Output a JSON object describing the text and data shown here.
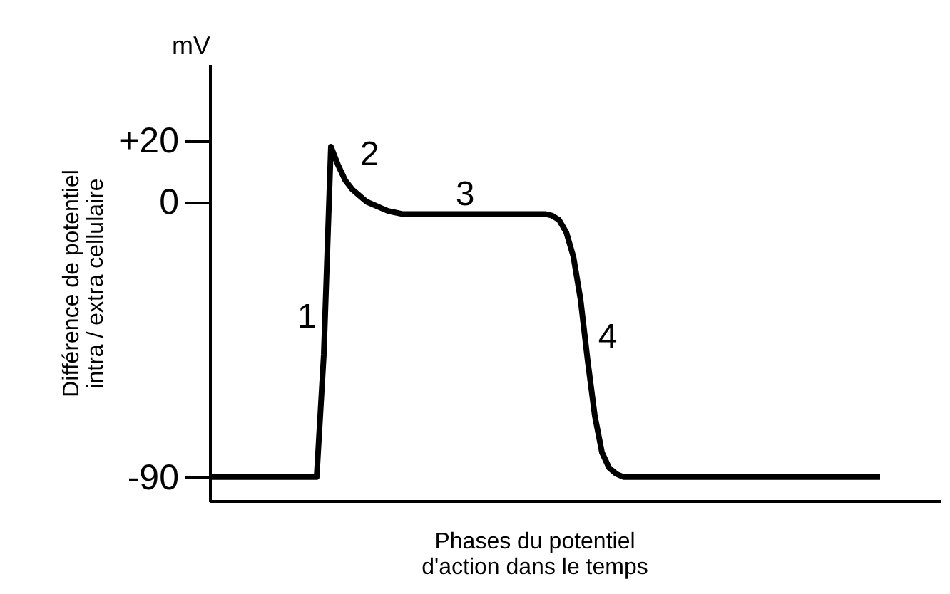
{
  "chart_data": {
    "type": "line",
    "xlabel": "Phases du potentiel\nd'action dans le temps",
    "ylabel": "Différence de potentiel\nintra / extra cellulaire",
    "annotations": [
      "mV",
      "1",
      "2",
      "3",
      "4"
    ],
    "categories": [
      null,
      null,
      null,
      null,
      null,
      null,
      null,
      null,
      null,
      null,
      null,
      null,
      null,
      null,
      null,
      null,
      null,
      null,
      null,
      null,
      null,
      null,
      null,
      null,
      null,
      null,
      null,
      null,
      null,
      null,
      null,
      null,
      null,
      null,
      null,
      null,
      null,
      null,
      null,
      null,
      null,
      null,
      null,
      null,
      null,
      null,
      null,
      null,
      null,
      null,
      null,
      null,
      null,
      null,
      null,
      null,
      null,
      null,
      null,
      null,
      null,
      null,
      null,
      null,
      null,
      null,
      null,
      null,
      null,
      null,
      null,
      null,
      null,
      null,
      null,
      null,
      null,
      null,
      null,
      null,
      null,
      null,
      null,
      null,
      null,
      null,
      null,
      null,
      null,
      null,
      null,
      null,
      null,
      null,
      null
    ],
    "series": [
      {
        "color": "#000000",
        "values": [
          -90,
          -90,
          -90,
          -90,
          -90,
          -90,
          -90,
          -90,
          -90,
          -90,
          -90,
          -90,
          -90,
          -90,
          -90,
          -90,
          -50,
          18,
          12,
          7,
          4,
          2,
          0,
          -1,
          -2,
          -3,
          -3.5,
          -4,
          -4,
          -4,
          -4,
          -4,
          -4,
          -4,
          -4,
          -4,
          -4,
          -4,
          -4,
          -4,
          -4,
          -4,
          -4,
          -4,
          -4,
          -4,
          -4,
          -4,
          -4.5,
          -6,
          -10,
          -18,
          -32,
          -52,
          -70,
          -82,
          -87,
          -89,
          -90,
          -90,
          -90,
          -90,
          -90,
          -90,
          -90,
          -90,
          -90,
          -90,
          -90,
          -90,
          -90,
          -90,
          -90,
          -90,
          -90,
          -90,
          -90,
          -90,
          -90,
          -90,
          -90,
          -90,
          -90,
          -90,
          -90,
          -90,
          -90,
          -90,
          -90,
          -90,
          -90,
          -90,
          -90,
          -90,
          -90
        ]
      }
    ],
    "ylim": [
      -98,
      45
    ],
    "yticks": [
      -90,
      0,
      {
        "value": 20,
        "label": "+20"
      }
    ],
    "grid": false,
    "marker": "none",
    "line_style": "solid",
    "tick_labels": "y"
  }
}
